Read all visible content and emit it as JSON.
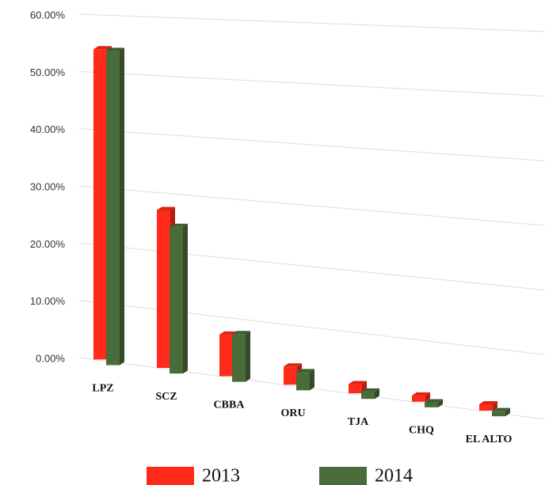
{
  "chart_data": {
    "type": "bar3d",
    "categories": [
      "LPZ",
      "SCZ",
      "CBBA",
      "ORU",
      "TJA",
      "CHQ",
      "EL ALTO"
    ],
    "series": [
      {
        "name": "2013",
        "color": "#ff2a1a",
        "values": [
          54,
          27,
          7,
          3,
          1.5,
          1,
          1
        ]
      },
      {
        "name": "2014",
        "color": "#4a6b3a",
        "values": [
          54.5,
          25,
          8,
          3,
          1.2,
          0.8,
          0.8
        ]
      }
    ],
    "ylim": [
      0,
      60
    ],
    "yticks": [
      {
        "value": 0,
        "label": "0.00%"
      },
      {
        "value": 10,
        "label": "10.00%"
      },
      {
        "value": 20,
        "label": "20.00%"
      },
      {
        "value": 30,
        "label": "30.00%"
      },
      {
        "value": 40,
        "label": "40.00%"
      },
      {
        "value": 50,
        "label": "50.00%"
      },
      {
        "value": 60,
        "label": "60.00%"
      }
    ],
    "grid": true
  }
}
